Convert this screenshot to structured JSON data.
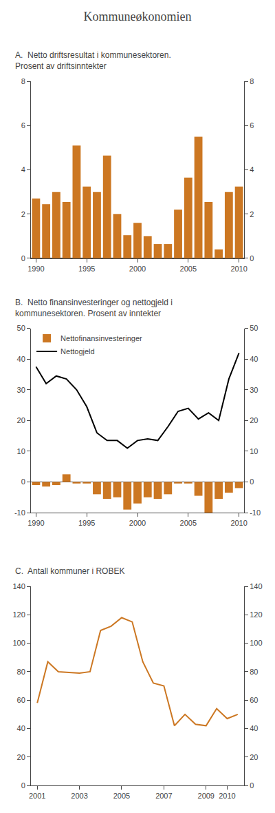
{
  "title": "Kommuneøkonomien",
  "chart_data": [
    {
      "type": "bar",
      "title": "A.  Netto driftsresultat i kommunesektoren.\nProsent av driftsinntekter",
      "x": [
        1990,
        1991,
        1992,
        1993,
        1994,
        1995,
        1996,
        1997,
        1998,
        1999,
        2000,
        2001,
        2002,
        2003,
        2004,
        2005,
        2006,
        2007,
        2008,
        2009,
        2010
      ],
      "values": [
        2.7,
        2.45,
        3.0,
        2.55,
        5.1,
        3.25,
        3.0,
        4.65,
        2.0,
        1.05,
        1.6,
        1.0,
        0.65,
        0.65,
        2.2,
        3.65,
        5.5,
        2.55,
        0.4,
        3.0,
        3.25
      ],
      "color": "#CC7722",
      "xlim": [
        1989.5,
        2010.5
      ],
      "xticks": [
        1990,
        1995,
        2000,
        2005,
        2010
      ],
      "ylim": [
        0,
        8
      ],
      "yticks": [
        0,
        2,
        4,
        6,
        8
      ],
      "y2lim": [
        0,
        8
      ],
      "y2ticks": [
        0,
        2,
        4,
        6,
        8
      ],
      "grid": false
    },
    {
      "type": "bar",
      "title": "B.  Netto finansinvesteringer og nettogjeld i\nkommunesektoren. Prosent av inntekter",
      "x": [
        1990,
        1991,
        1992,
        1993,
        1994,
        1995,
        1996,
        1997,
        1998,
        1999,
        2000,
        2001,
        2002,
        2003,
        2004,
        2005,
        2006,
        2007,
        2008,
        2009,
        2010
      ],
      "series": [
        {
          "name": "Nettofinansinvesteringer",
          "type": "bar",
          "color": "#CC7722",
          "values": [
            -1.0,
            -1.5,
            -1.0,
            2.5,
            -0.5,
            -0.5,
            -4.0,
            -5.5,
            -5.0,
            -9.0,
            -7.0,
            -5.0,
            -5.5,
            -4.0,
            -0.5,
            -0.5,
            -4.5,
            -10.0,
            -5.5,
            -3.5,
            -2.0
          ]
        },
        {
          "name": "Nettogjeld",
          "type": "line",
          "color": "#000000",
          "values": [
            37.5,
            32.0,
            34.5,
            33.5,
            30.0,
            24.5,
            16.0,
            13.5,
            13.5,
            11.0,
            13.5,
            14.0,
            13.5,
            18.0,
            23.0,
            24.0,
            20.5,
            22.5,
            20.0,
            33.5,
            42.0
          ]
        }
      ],
      "xlim": [
        1989.5,
        2010.5
      ],
      "xticks": [
        1990,
        1995,
        2000,
        2005,
        2010
      ],
      "ylim": [
        -10,
        50
      ],
      "yticks": [
        -10,
        0,
        10,
        20,
        30,
        40,
        50
      ],
      "y2lim": [
        -10,
        50
      ],
      "y2ticks": [
        -10,
        0,
        10,
        20,
        30,
        40,
        50
      ],
      "grid": false,
      "legend": "upper left"
    },
    {
      "type": "line",
      "title": "C.  Antall kommuner i ROBEK",
      "x": [
        2001,
        2001.5,
        2002,
        2003,
        2003.5,
        2004,
        2004.5,
        2005,
        2005.5,
        2006,
        2006.5,
        2007,
        2007.5,
        2008,
        2008.5,
        2009,
        2009.5,
        2010,
        2010.5
      ],
      "values": [
        58,
        87,
        80,
        79,
        80,
        109,
        112,
        118,
        115,
        87,
        72,
        70,
        42,
        50,
        43,
        42,
        54,
        47,
        50
      ],
      "color": "#CC7722",
      "xlim": [
        2000.7,
        2010.8
      ],
      "xticks": [
        2001,
        2003,
        2005,
        2007,
        2009,
        2010
      ],
      "ylim": [
        0,
        140
      ],
      "yticks": [
        0,
        20,
        40,
        60,
        80,
        100,
        120,
        140
      ],
      "y2lim": [
        0,
        140
      ],
      "y2ticks": [
        0,
        20,
        40,
        60,
        80,
        100,
        120,
        140
      ],
      "grid": false
    }
  ]
}
